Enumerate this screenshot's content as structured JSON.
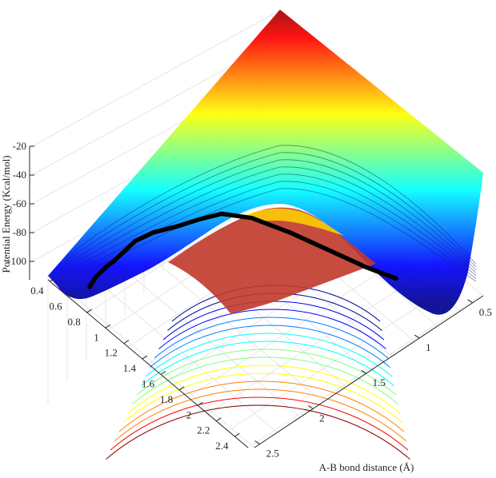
{
  "chart_data": {
    "type": "surface",
    "title": "",
    "zlabel": "Potential Energy (Kcal/mol)",
    "xlabel": "A-B bond distance (Å)",
    "ylabel": "",
    "z_ticks": [
      "-20",
      "-40",
      "-60",
      "-80",
      "-100"
    ],
    "z_tick_values": [
      -20,
      -40,
      -60,
      -80,
      -100
    ],
    "left_ticks": [
      "0.4",
      "0.6",
      "0.8",
      "1",
      "1.2",
      "1.4",
      "1.6",
      "1.8",
      "2",
      "2.2",
      "2.4"
    ],
    "left_tick_values": [
      0.4,
      0.6,
      0.8,
      1.0,
      1.2,
      1.4,
      1.6,
      1.8,
      2.0,
      2.2,
      2.4
    ],
    "right_ticks": [
      "0.5",
      "1",
      "1.5",
      "2",
      "2.5"
    ],
    "right_tick_values": [
      0.5,
      1.0,
      1.5,
      2.0,
      2.5
    ],
    "zlim": [
      -110,
      -20
    ],
    "grid": true,
    "colormap": [
      "#00008f",
      "#0000ff",
      "#0080ff",
      "#00ffff",
      "#80ff80",
      "#ffff00",
      "#ff8000",
      "#ff0000",
      "#800000"
    ],
    "reaction_path": {
      "color": "#000000",
      "points": [
        [
          2.55,
          0.48,
          -104
        ],
        [
          2.3,
          0.52,
          -97
        ],
        [
          2.05,
          0.56,
          -93
        ],
        [
          1.8,
          0.6,
          -89
        ],
        [
          1.6,
          0.64,
          -86
        ],
        [
          1.42,
          0.7,
          -80
        ],
        [
          1.25,
          0.78,
          -72
        ],
        [
          1.1,
          0.9,
          -66
        ],
        [
          0.95,
          1.05,
          -62
        ],
        [
          0.85,
          1.2,
          -57
        ],
        [
          0.78,
          1.35,
          -53
        ],
        [
          0.74,
          1.55,
          -56
        ],
        [
          0.71,
          1.8,
          -66
        ],
        [
          0.69,
          2.05,
          -78
        ],
        [
          0.68,
          2.3,
          -90
        ],
        [
          0.67,
          2.5,
          -98
        ]
      ]
    }
  }
}
